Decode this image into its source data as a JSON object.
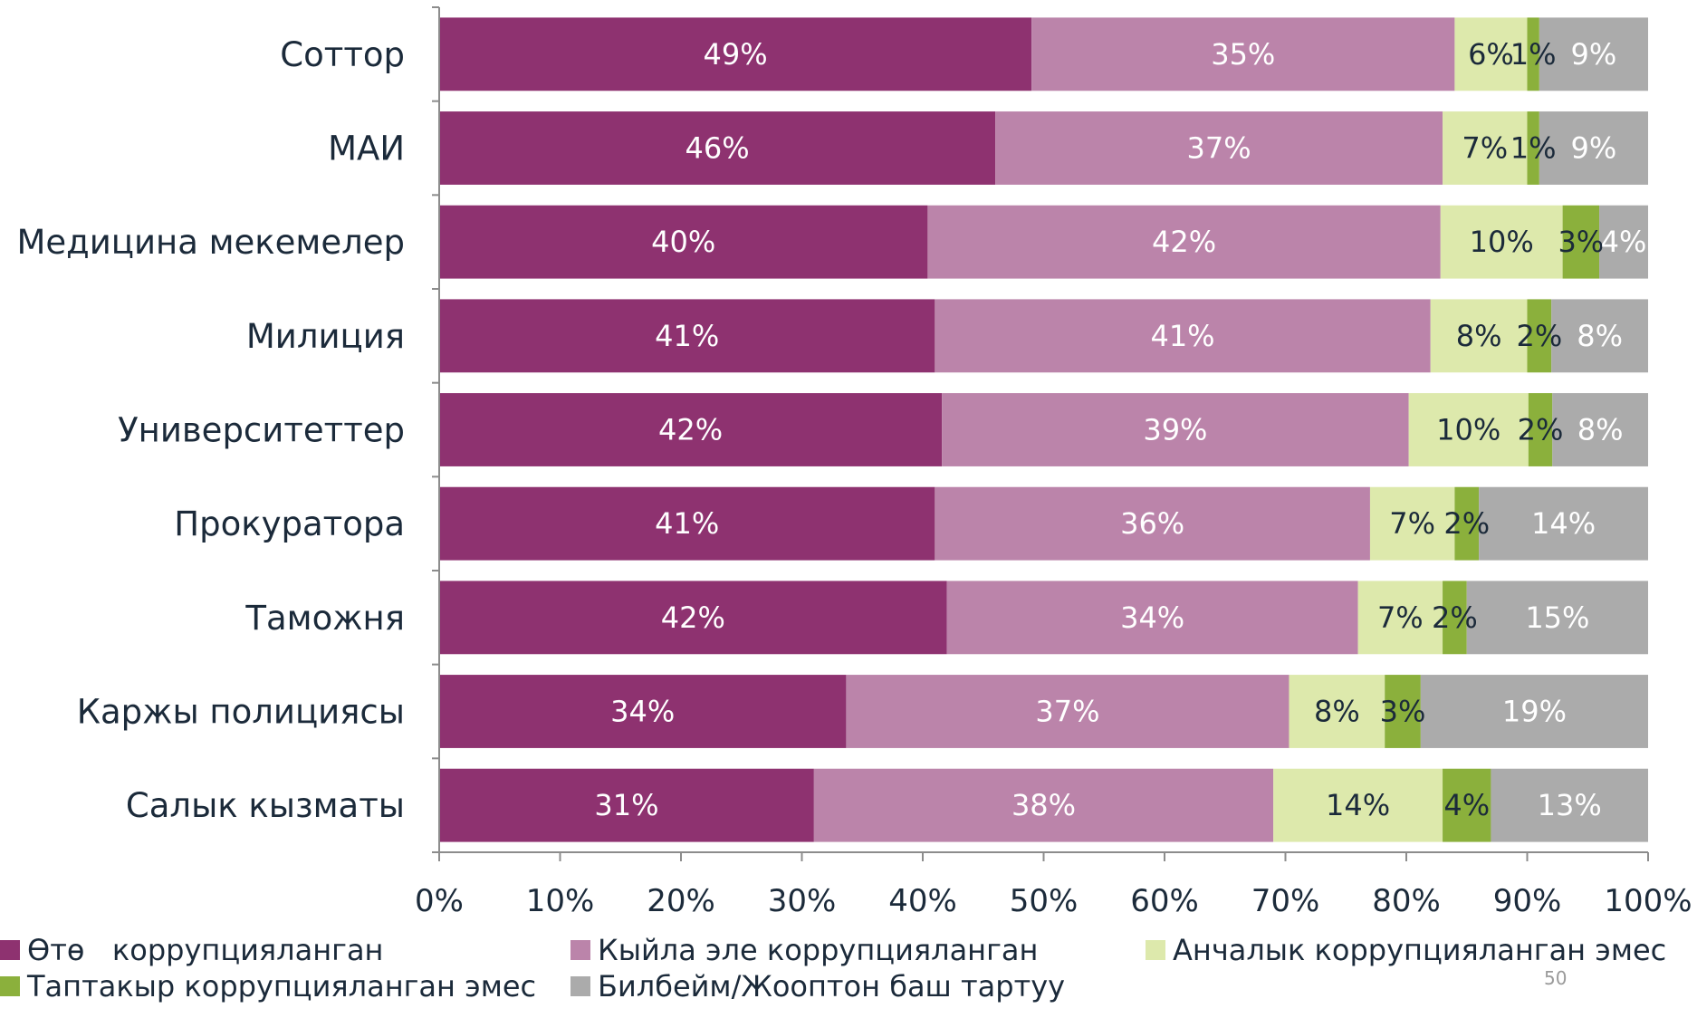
{
  "chart_data": {
    "type": "bar",
    "orientation": "horizontal",
    "stacked": true,
    "normalized_percent": true,
    "categories": [
      "Соттор",
      "МАИ",
      "Медицина мекемелер",
      "Милиция",
      "Университеттер",
      "Прокуратора",
      "Таможня",
      "Каржы полициясы",
      "Салык кызматы"
    ],
    "series": [
      {
        "name": "Өтө   коррупцияланган",
        "color": "#8e3270",
        "label_color": "#ffffff",
        "values": [
          49,
          46,
          40,
          41,
          42,
          41,
          42,
          34,
          31
        ],
        "labels": [
          "49%",
          "46%",
          "40%",
          "41%",
          "42%",
          "41%",
          "42%",
          "34%",
          "31%"
        ]
      },
      {
        "name": "Кыйла эле коррупцияланган",
        "color": "#bb84aa",
        "label_color": "#ffffff",
        "values": [
          35,
          37,
          42,
          41,
          39,
          36,
          34,
          37,
          38
        ],
        "labels": [
          "35%",
          "37%",
          "42%",
          "41%",
          "39%",
          "36%",
          "34%",
          "37%",
          "38%"
        ]
      },
      {
        "name": "Анчалык коррупцияланган эмес",
        "color": "#dde9ac",
        "label_color": "#1b2a3a",
        "values": [
          6,
          7,
          10,
          8,
          10,
          7,
          7,
          8,
          14
        ],
        "labels": [
          "6%",
          "7%",
          "10%",
          "8%",
          "10%",
          "7%",
          "7%",
          "8%",
          "14%"
        ]
      },
      {
        "name": "Таптакыр коррупцияланган эмес",
        "color": "#8bb03c",
        "label_color": "#1b2a3a",
        "values": [
          1,
          1,
          3,
          2,
          2,
          2,
          2,
          3,
          4
        ],
        "labels": [
          "1%",
          "1%",
          "3%",
          "2%",
          "2%",
          "2%",
          "2%",
          "3%",
          "4%"
        ]
      },
      {
        "name": "Билбейм/Жооптон баш тартуу",
        "color": "#ababab",
        "label_color": "#ffffff",
        "values": [
          9,
          9,
          4,
          8,
          8,
          14,
          15,
          19,
          13
        ],
        "labels": [
          "9%",
          "9%",
          "4%",
          "8%",
          "8%",
          "14%",
          "15%",
          "19%",
          "13%"
        ]
      }
    ],
    "xlim": [
      0,
      100
    ],
    "xticks": [
      "0%",
      "10%",
      "20%",
      "30%",
      "40%",
      "50%",
      "60%",
      "70%",
      "80%",
      "90%",
      "100%"
    ],
    "title": "",
    "xlabel": "",
    "ylabel": "",
    "grid": false,
    "legend_position": "bottom"
  },
  "page_number": "50"
}
